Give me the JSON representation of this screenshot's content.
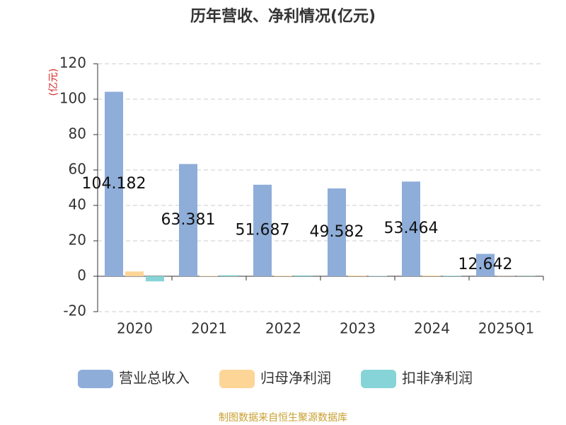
{
  "chart_data": {
    "type": "bar",
    "title": "历年营收、净利情况(亿元)",
    "y_label": "(亿元)",
    "categories": [
      "2020",
      "2021",
      "2022",
      "2023",
      "2024",
      "2025Q1"
    ],
    "series": [
      {
        "name": "营业总收入",
        "color": "#8eadd9",
        "values": [
          104.182,
          63.381,
          51.687,
          49.582,
          53.464,
          12.642
        ]
      },
      {
        "name": "归母净利润",
        "color": "#fdd596",
        "values": [
          2.7,
          0.2,
          0.3,
          0.4,
          0.4,
          0.1
        ]
      },
      {
        "name": "扣非净利润",
        "color": "#86d4d8",
        "values": [
          -2.9,
          0.6,
          0.5,
          0.2,
          0.3,
          0.1
        ]
      }
    ],
    "label_series": 0,
    "ylim": [
      -20,
      120
    ],
    "yticks": [
      -20,
      0,
      20,
      40,
      60,
      80,
      100,
      120
    ],
    "grid": true,
    "legend": "bottom",
    "source": "制图数据来自恒生聚源数据库"
  }
}
